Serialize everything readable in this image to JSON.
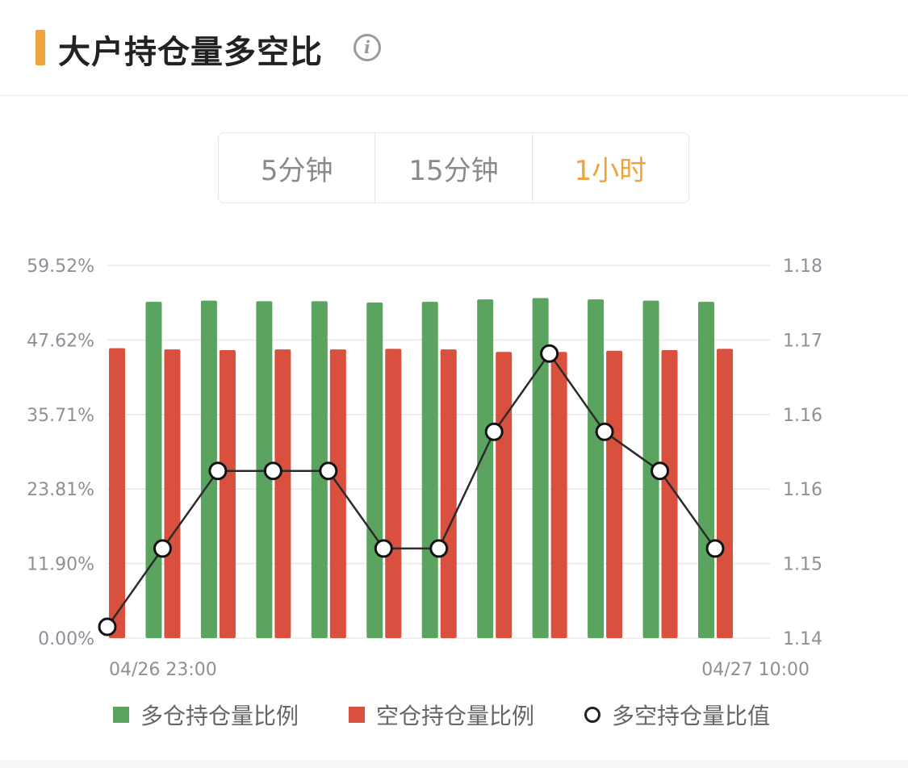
{
  "header": {
    "title": "大户持仓量多空比",
    "info_icon": "info-icon",
    "accent_color": "#f0a33a"
  },
  "tabs": [
    {
      "label": "5分钟",
      "active": false
    },
    {
      "label": "15分钟",
      "active": false
    },
    {
      "label": "1小时",
      "active": true
    }
  ],
  "chart_data": {
    "type": "bar",
    "left_axis": {
      "ticks": [
        "59.52%",
        "47.62%",
        "35.71%",
        "23.81%",
        "11.90%",
        "0.00%"
      ],
      "ylim": [
        0,
        59.52
      ]
    },
    "right_axis": {
      "ticks": [
        "1.18",
        "1.17",
        "1.16",
        "1.16",
        "1.15",
        "1.14"
      ],
      "ylim": [
        1.1389,
        1.1884
      ]
    },
    "x_tick_labels": {
      "start": "04/26 23:00",
      "end": "04/27 10:00"
    },
    "grid": true,
    "legend_position": "bottom",
    "series": [
      {
        "name": "多仓持仓量比例",
        "type": "bar",
        "color": "#5aa45f",
        "values": [
          0,
          53.7,
          53.9,
          53.8,
          53.8,
          53.6,
          53.7,
          54.1,
          54.3,
          54.1,
          53.9,
          53.7
        ]
      },
      {
        "name": "空仓持仓量比例",
        "type": "bar",
        "color": "#d9503f",
        "values": [
          46.3,
          46.1,
          46.0,
          46.1,
          46.1,
          46.2,
          46.1,
          45.7,
          45.7,
          45.9,
          46.0,
          46.2
        ]
      },
      {
        "name": "多空持仓量比值",
        "type": "line",
        "color": "#2b2b2b",
        "values": [
          1.1404,
          1.1508,
          1.1611,
          1.1611,
          1.1611,
          1.1508,
          1.1508,
          1.1663,
          1.1767,
          1.1663,
          1.1611,
          1.1508
        ]
      }
    ]
  },
  "legend": [
    {
      "label": "多仓持仓量比例",
      "color": "#5aa45f"
    },
    {
      "label": "空仓持仓量比例",
      "color": "#d9503f"
    },
    {
      "label": "多空持仓量比值"
    }
  ]
}
